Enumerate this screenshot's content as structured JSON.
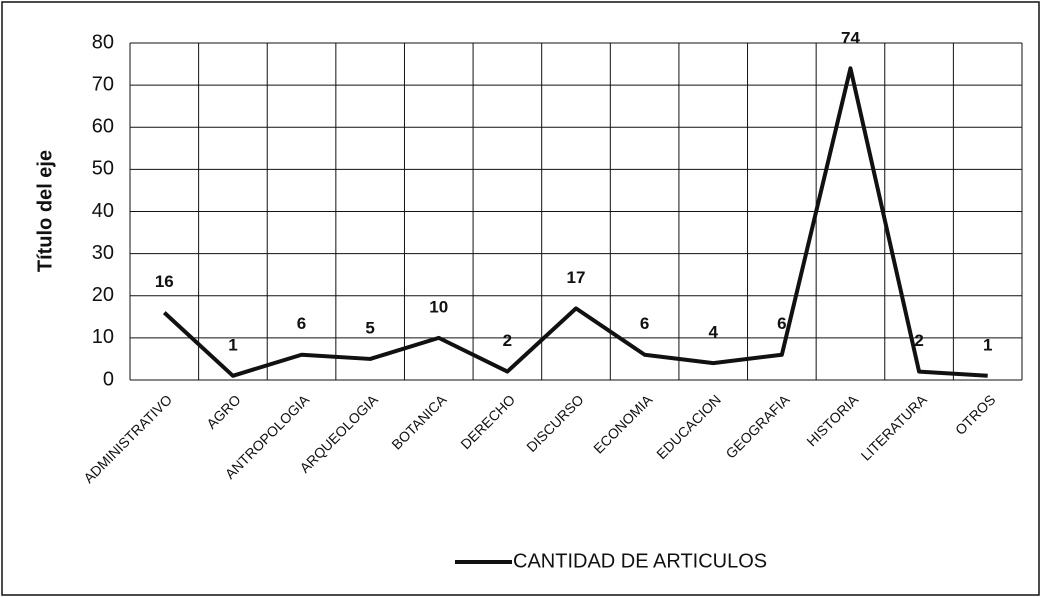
{
  "chart_data": {
    "type": "line",
    "y_axis_label": "Título del eje",
    "categories": [
      "ADMINISTRATIVO",
      "AGRO",
      "ANTROPOLOGIA",
      "ARQUEOLOGIA",
      "BOTANICA",
      "DERECHO",
      "DISCURSO",
      "ECONOMIA",
      "EDUCACION",
      "GEOGRAFIA",
      "HISTORIA",
      "LITERATURA",
      "OTROS"
    ],
    "series": [
      {
        "name": "CANTIDAD DE ARTICULOS",
        "color": "#111111",
        "values": [
          16,
          1,
          6,
          5,
          10,
          2,
          17,
          6,
          4,
          6,
          74,
          2,
          1
        ]
      }
    ],
    "ylim": [
      0,
      80
    ],
    "yticks": [
      0,
      10,
      20,
      30,
      40,
      50,
      60,
      70,
      80
    ],
    "grid": true,
    "legend": "bottom"
  }
}
